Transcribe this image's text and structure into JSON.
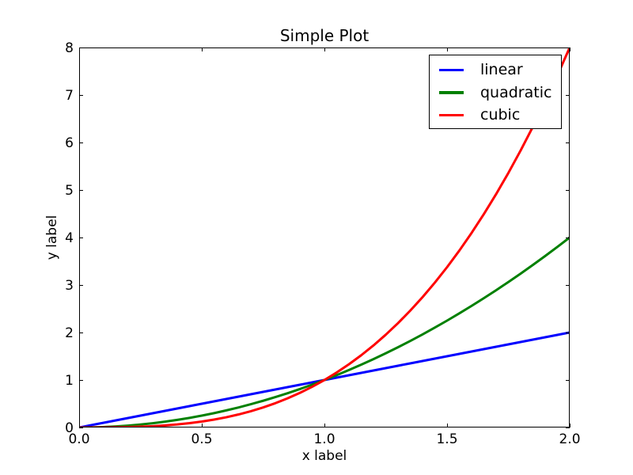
{
  "figure": {
    "background_color": "#ffffff",
    "axis_color": "#000000",
    "text_color": "#000000"
  },
  "chart_data": {
    "type": "line",
    "title": "Simple Plot",
    "xlabel": "x label",
    "ylabel": "y label",
    "xlim": [
      0,
      2
    ],
    "ylim": [
      0,
      8
    ],
    "xticks": [
      0.0,
      0.5,
      1.0,
      1.5,
      2.0
    ],
    "xtick_labels": [
      "0.0",
      "0.5",
      "1.0",
      "1.5",
      "2.0"
    ],
    "yticks": [
      0,
      1,
      2,
      3,
      4,
      5,
      6,
      7,
      8
    ],
    "ytick_labels": [
      "0",
      "1",
      "2",
      "3",
      "4",
      "5",
      "6",
      "7",
      "8"
    ],
    "grid": false,
    "legend_position": "upper right",
    "x": [
      0,
      0.05,
      0.1,
      0.15,
      0.2,
      0.25,
      0.3,
      0.35,
      0.4,
      0.45,
      0.5,
      0.55,
      0.6,
      0.65,
      0.7,
      0.75,
      0.8,
      0.85,
      0.9,
      0.95,
      1,
      1.05,
      1.1,
      1.15,
      1.2,
      1.25,
      1.3,
      1.35,
      1.4,
      1.45,
      1.5,
      1.55,
      1.6,
      1.65,
      1.7,
      1.75,
      1.8,
      1.85,
      1.9,
      1.95,
      2
    ],
    "series": [
      {
        "name": "linear",
        "color": "#0000ff",
        "values": [
          0,
          0.05,
          0.1,
          0.15,
          0.2,
          0.25,
          0.3,
          0.35,
          0.4,
          0.45,
          0.5,
          0.55,
          0.6,
          0.65,
          0.7,
          0.75,
          0.8,
          0.85,
          0.9,
          0.95,
          1,
          1.05,
          1.1,
          1.15,
          1.2,
          1.25,
          1.3,
          1.35,
          1.4,
          1.45,
          1.5,
          1.55,
          1.6,
          1.65,
          1.7,
          1.75,
          1.8,
          1.85,
          1.9,
          1.95,
          2
        ]
      },
      {
        "name": "quadratic",
        "color": "#008000",
        "values": [
          0,
          0.0025,
          0.01,
          0.0225,
          0.04,
          0.0625,
          0.09,
          0.1225,
          0.16,
          0.2025,
          0.25,
          0.3025,
          0.36,
          0.4225,
          0.49,
          0.5625,
          0.64,
          0.7225,
          0.81,
          0.9025,
          1,
          1.1025,
          1.21,
          1.3225,
          1.44,
          1.5625,
          1.69,
          1.8225,
          1.96,
          2.1025,
          2.25,
          2.4025,
          2.56,
          2.7225,
          2.89,
          3.0625,
          3.24,
          3.4225,
          3.61,
          3.8025,
          4
        ]
      },
      {
        "name": "cubic",
        "color": "#ff0000",
        "values": [
          0,
          0.0001,
          0.001,
          0.0034,
          0.008,
          0.0156,
          0.027,
          0.0429,
          0.064,
          0.0911,
          0.125,
          0.1664,
          0.216,
          0.2746,
          0.343,
          0.4219,
          0.512,
          0.6141,
          0.729,
          0.8574,
          1,
          1.1576,
          1.331,
          1.5209,
          1.728,
          1.9531,
          2.197,
          2.4604,
          2.744,
          3.0486,
          3.375,
          3.7239,
          4.096,
          4.4921,
          4.913,
          5.3594,
          5.832,
          6.3316,
          6.859,
          7.4149,
          8
        ]
      }
    ]
  }
}
